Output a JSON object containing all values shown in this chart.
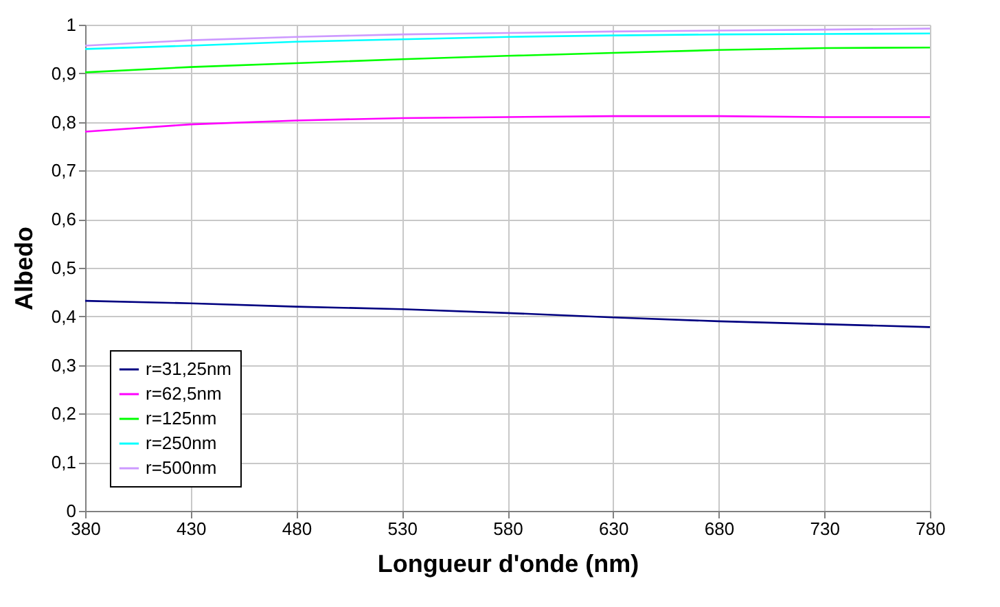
{
  "chart_data": {
    "type": "line",
    "xlabel": "Longueur d'onde (nm)",
    "ylabel": "Albedo",
    "x": [
      380,
      430,
      480,
      530,
      580,
      630,
      680,
      730,
      780
    ],
    "series": [
      {
        "name": "r=31,25nm",
        "color": "#000080",
        "values": [
          0.432,
          0.427,
          0.42,
          0.415,
          0.407,
          0.398,
          0.39,
          0.384,
          0.378
        ]
      },
      {
        "name": "r=62,5nm",
        "color": "#ff00ff",
        "values": [
          0.78,
          0.795,
          0.803,
          0.808,
          0.81,
          0.812,
          0.812,
          0.81,
          0.81
        ]
      },
      {
        "name": "r=125nm",
        "color": "#00ff00",
        "values": [
          0.902,
          0.913,
          0.921,
          0.929,
          0.936,
          0.942,
          0.948,
          0.952,
          0.953
        ]
      },
      {
        "name": "r=250nm",
        "color": "#00ffff",
        "values": [
          0.95,
          0.957,
          0.965,
          0.97,
          0.975,
          0.978,
          0.98,
          0.981,
          0.982
        ]
      },
      {
        "name": "r=500nm",
        "color": "#cc99ff",
        "values": [
          0.957,
          0.968,
          0.975,
          0.98,
          0.983,
          0.986,
          0.988,
          0.99,
          0.992
        ]
      }
    ],
    "xlim": [
      380,
      780
    ],
    "xticks": [
      380,
      430,
      480,
      530,
      580,
      630,
      680,
      730,
      780
    ],
    "ylim": [
      0,
      1
    ],
    "yticks": [
      0,
      {
        "value": 0.1,
        "label": "0,1"
      },
      {
        "value": 0.2,
        "label": "0,2"
      },
      {
        "value": 0.3,
        "label": "0,3"
      },
      {
        "value": 0.4,
        "label": "0,4"
      },
      {
        "value": 0.5,
        "label": "0,5"
      },
      {
        "value": 0.6,
        "label": "0,6"
      },
      {
        "value": 0.7,
        "label": "0,7"
      },
      {
        "value": 0.8,
        "label": "0,8"
      },
      {
        "value": 0.9,
        "label": "0,9"
      },
      1
    ],
    "grid": true,
    "legend": "bottom left",
    "marker": "none",
    "line_style": "solid"
  }
}
